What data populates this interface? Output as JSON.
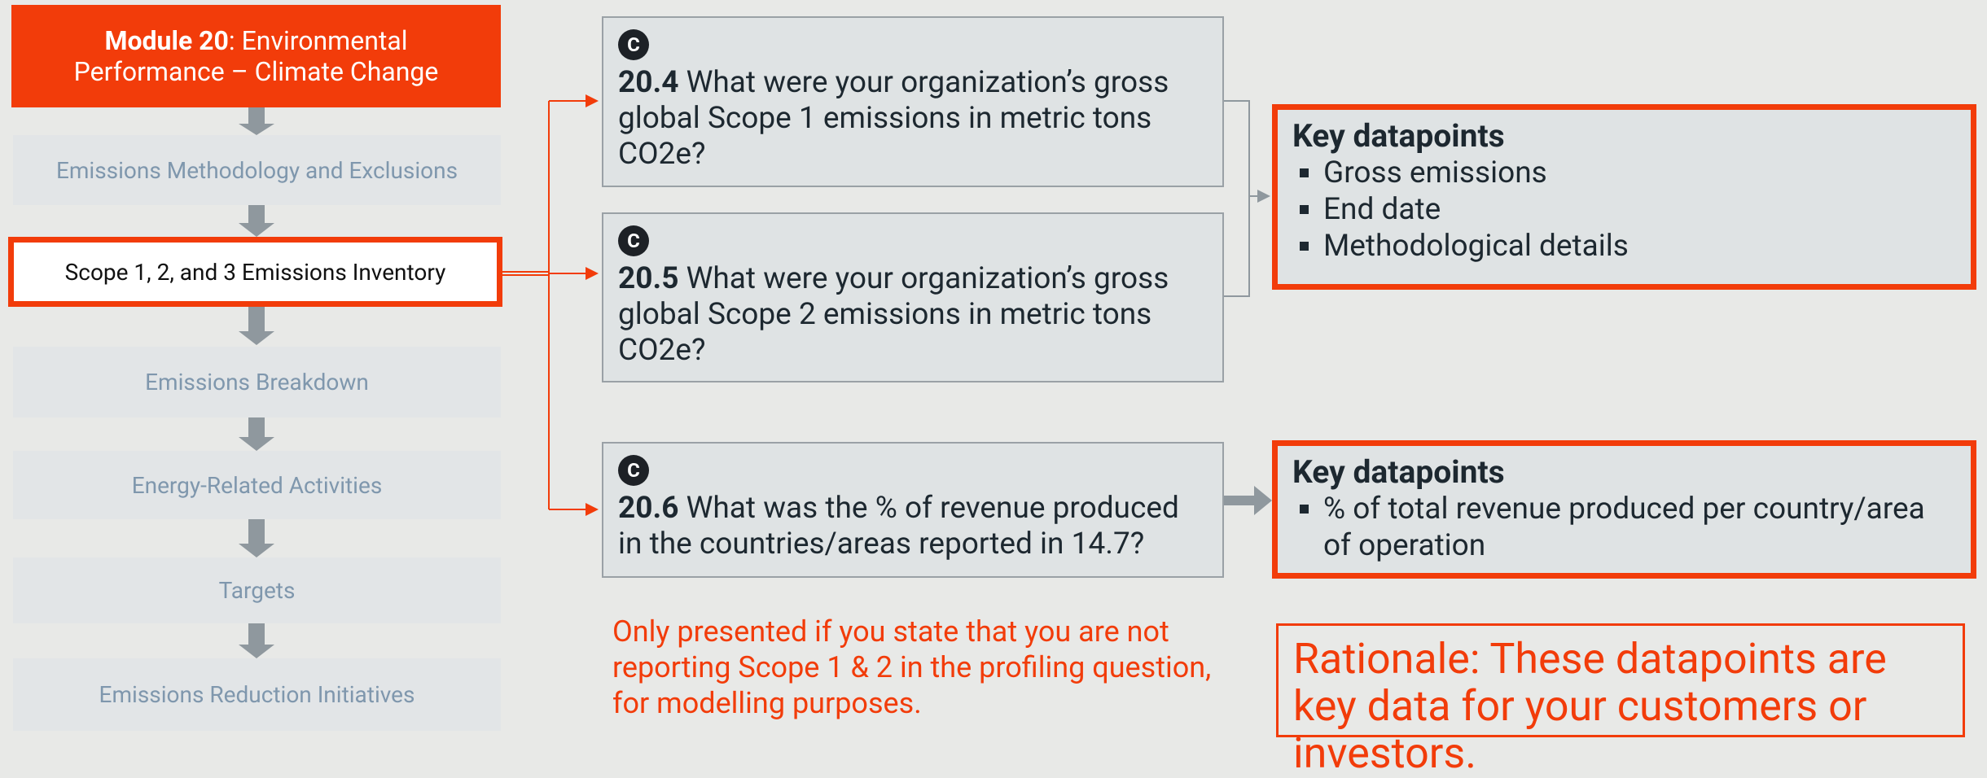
{
  "header": {
    "module": "Module 20",
    "title": ": Environmental Performance – Climate Change"
  },
  "steps": [
    "Emissions Methodology and Exclusions",
    "Scope 1, 2, and 3 Emissions Inventory",
    "Emissions Breakdown",
    "Energy-Related Activities",
    "Targets",
    "Emissions Reduction Initiatives"
  ],
  "questions": [
    {
      "badge": "C",
      "number": "20.4",
      "text": " What were your organization’s gross global Scope 1 emissions in metric tons CO2e?"
    },
    {
      "badge": "C",
      "number": "20.5",
      "text": " What were your organization’s gross global Scope 2 emissions in metric tons CO2e?"
    },
    {
      "badge": "C",
      "number": "20.6",
      "text": " What was the % of revenue produced in the countries/areas reported in 14.7?"
    }
  ],
  "key_datapoints": [
    {
      "title": "Key datapoints",
      "items": [
        "Gross emissions",
        "End date",
        "Methodological details"
      ]
    },
    {
      "title": "Key datapoints",
      "items": [
        "% of total revenue produced per country/area of operation"
      ]
    }
  ],
  "note": "Only presented if you state that you are not reporting Scope 1 & 2 in the profiling question, for modelling purposes.",
  "rationale": "Rationale: These datapoints are key data for your customers or investors."
}
